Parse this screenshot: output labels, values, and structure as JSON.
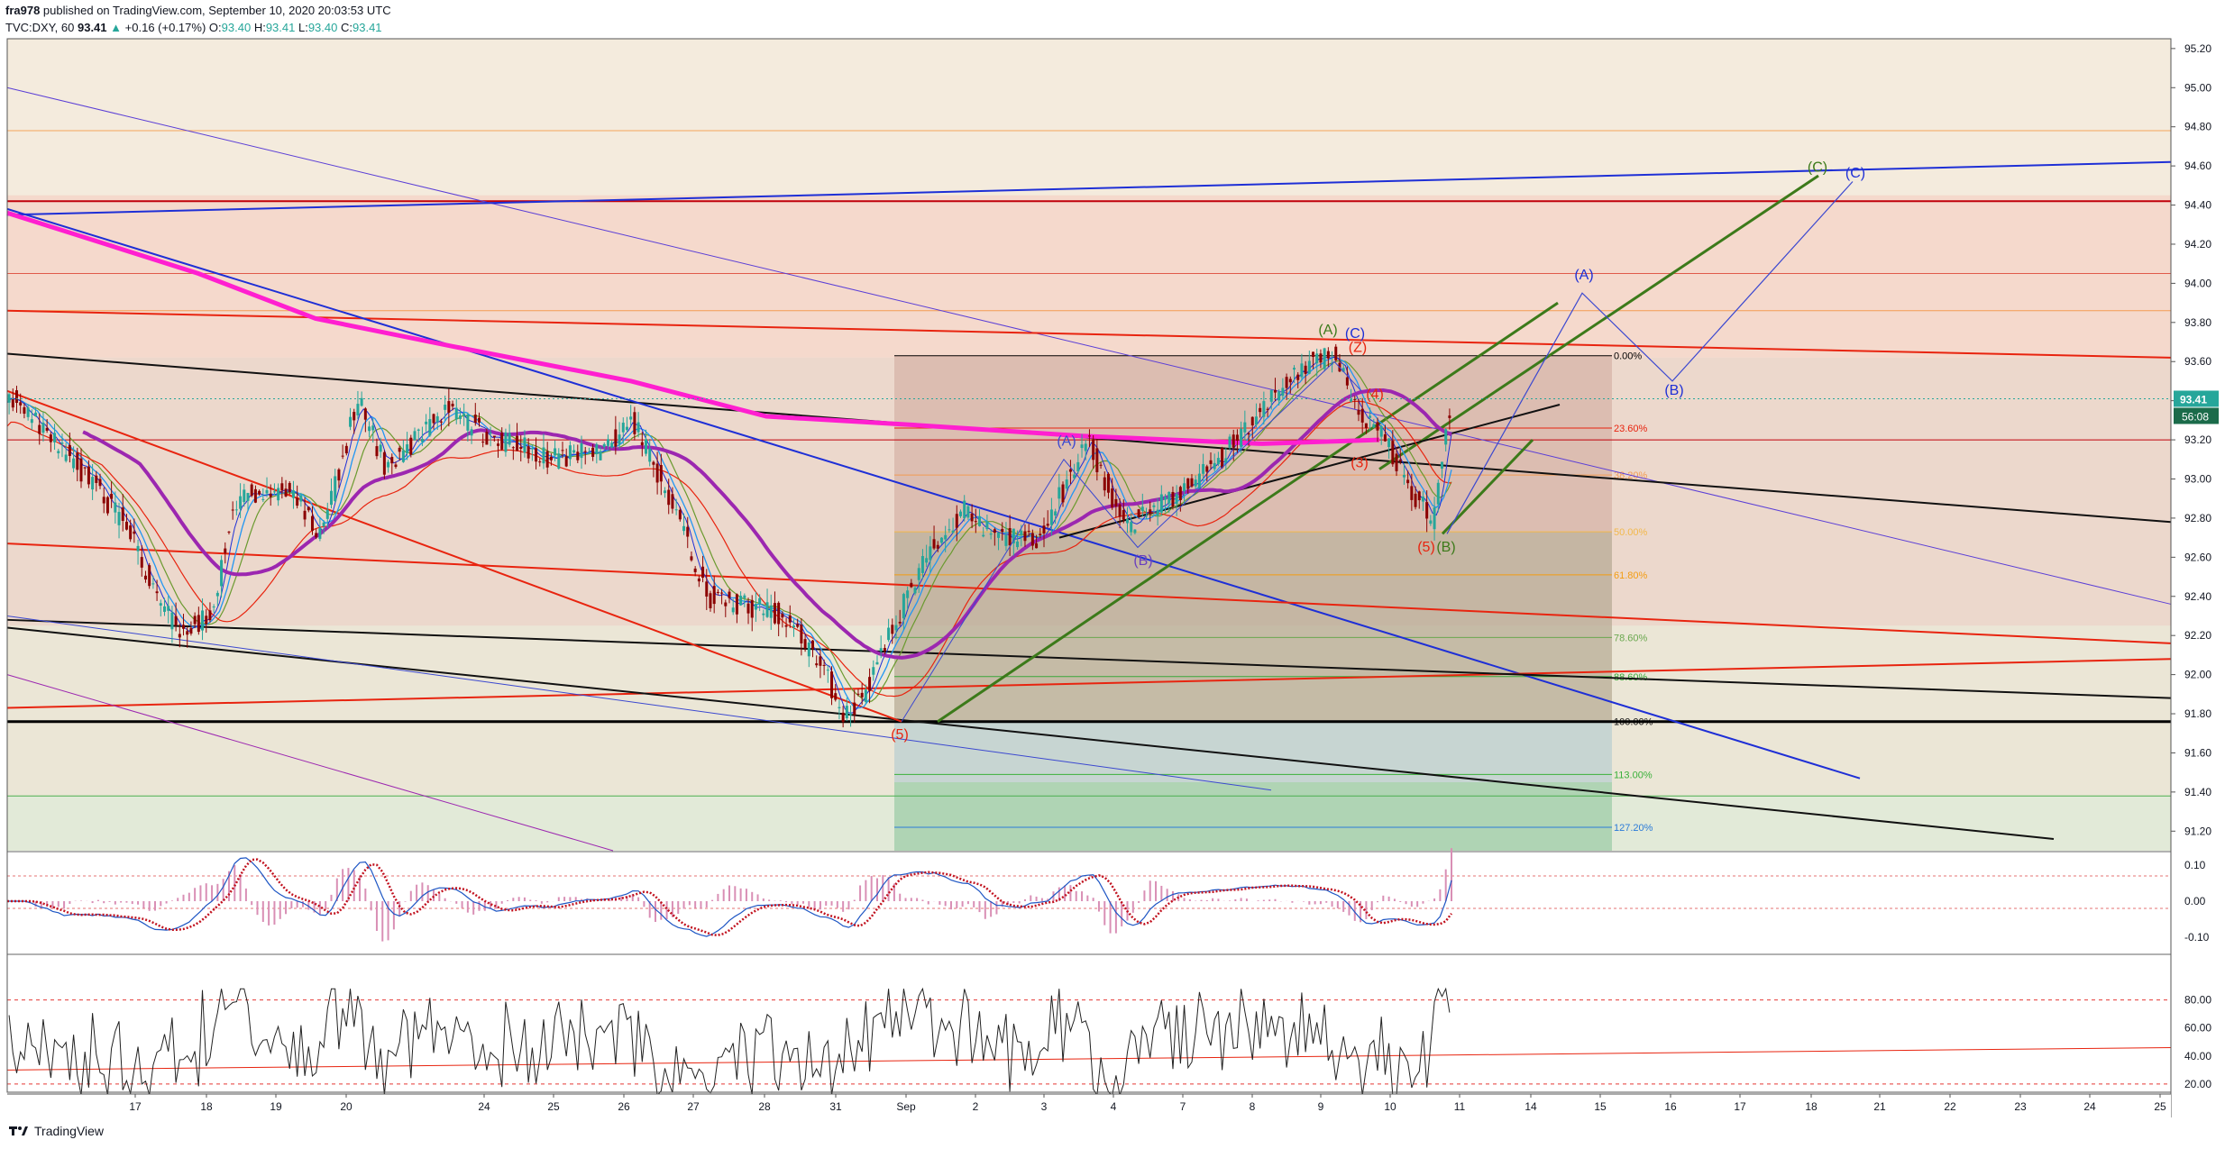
{
  "header": {
    "line1_user": "fra978",
    "line1_rest": " published on TradingView.com, September 10, 2020 20:03:53 UTC",
    "symbol": "TVC:DXY, 60",
    "last": "93.41",
    "change": "+0.16 (+0.17%)",
    "o_label": "O:",
    "o": "93.40",
    "h_label": "H:",
    "h": "93.41",
    "l_label": "L:",
    "l": "93.40",
    "c_label": "C:",
    "c": "93.41"
  },
  "footer": {
    "brand": "TradingView"
  },
  "colors": {
    "up": "#26a69a",
    "down": "#8b0000",
    "magenta": "#ff1fd0",
    "purple": "#9c27b0",
    "blue": "#1e2fd6",
    "red": "#e8240f",
    "green": "#3c7a1a",
    "black": "#111111"
  },
  "chart_data": {
    "type": "candlestick",
    "symbol": "TVC:DXY",
    "interval": "60",
    "y_axis": {
      "ticks": [
        "95.20",
        "95.00",
        "94.80",
        "94.60",
        "94.40",
        "94.20",
        "94.00",
        "93.80",
        "93.60",
        "93.40",
        "93.20",
        "93.00",
        "92.80",
        "92.60",
        "92.40",
        "92.20",
        "92.00",
        "91.80",
        "91.60",
        "91.40",
        "91.20"
      ],
      "range": [
        91.1,
        95.25
      ]
    },
    "x_axis": {
      "ticks": [
        "17",
        "18",
        "19",
        "20",
        "24",
        "25",
        "26",
        "27",
        "28",
        "31",
        "Sep",
        "2",
        "3",
        "4",
        "7",
        "8",
        "9",
        "10",
        "11",
        "14",
        "15",
        "16",
        "17",
        "18",
        "21",
        "22",
        "23",
        "24",
        "25"
      ]
    },
    "last_price_label": "93.41",
    "countdown_label": "56:08",
    "fibonacci": {
      "levels": [
        {
          "label": "0.00%",
          "price": 93.63
        },
        {
          "label": "23.60%",
          "price": 93.26
        },
        {
          "label": "38.20%",
          "price": 93.02
        },
        {
          "label": "50.00%",
          "price": 92.73
        },
        {
          "label": "61.80%",
          "price": 92.51
        },
        {
          "label": "78.60%",
          "price": 92.19
        },
        {
          "label": "88.60%",
          "price": 91.99
        },
        {
          "label": "100.00%",
          "price": 91.76
        },
        {
          "label": "113.00%",
          "price": 91.49
        },
        {
          "label": "127.20%",
          "price": 91.22
        }
      ]
    },
    "wave_labels": [
      "(5)",
      "(A)",
      "(B)",
      "(A)",
      "(C)",
      "(Z)",
      "(4)",
      "(3)",
      "(5)",
      "(B)",
      "(A)",
      "(B)",
      "(C)",
      "(C)"
    ],
    "macd": {
      "ticks": [
        "0.10",
        "0.00",
        "-0.10"
      ]
    },
    "rsi": {
      "ticks": [
        "80.00",
        "60.00",
        "40.00",
        "20.00"
      ]
    }
  }
}
